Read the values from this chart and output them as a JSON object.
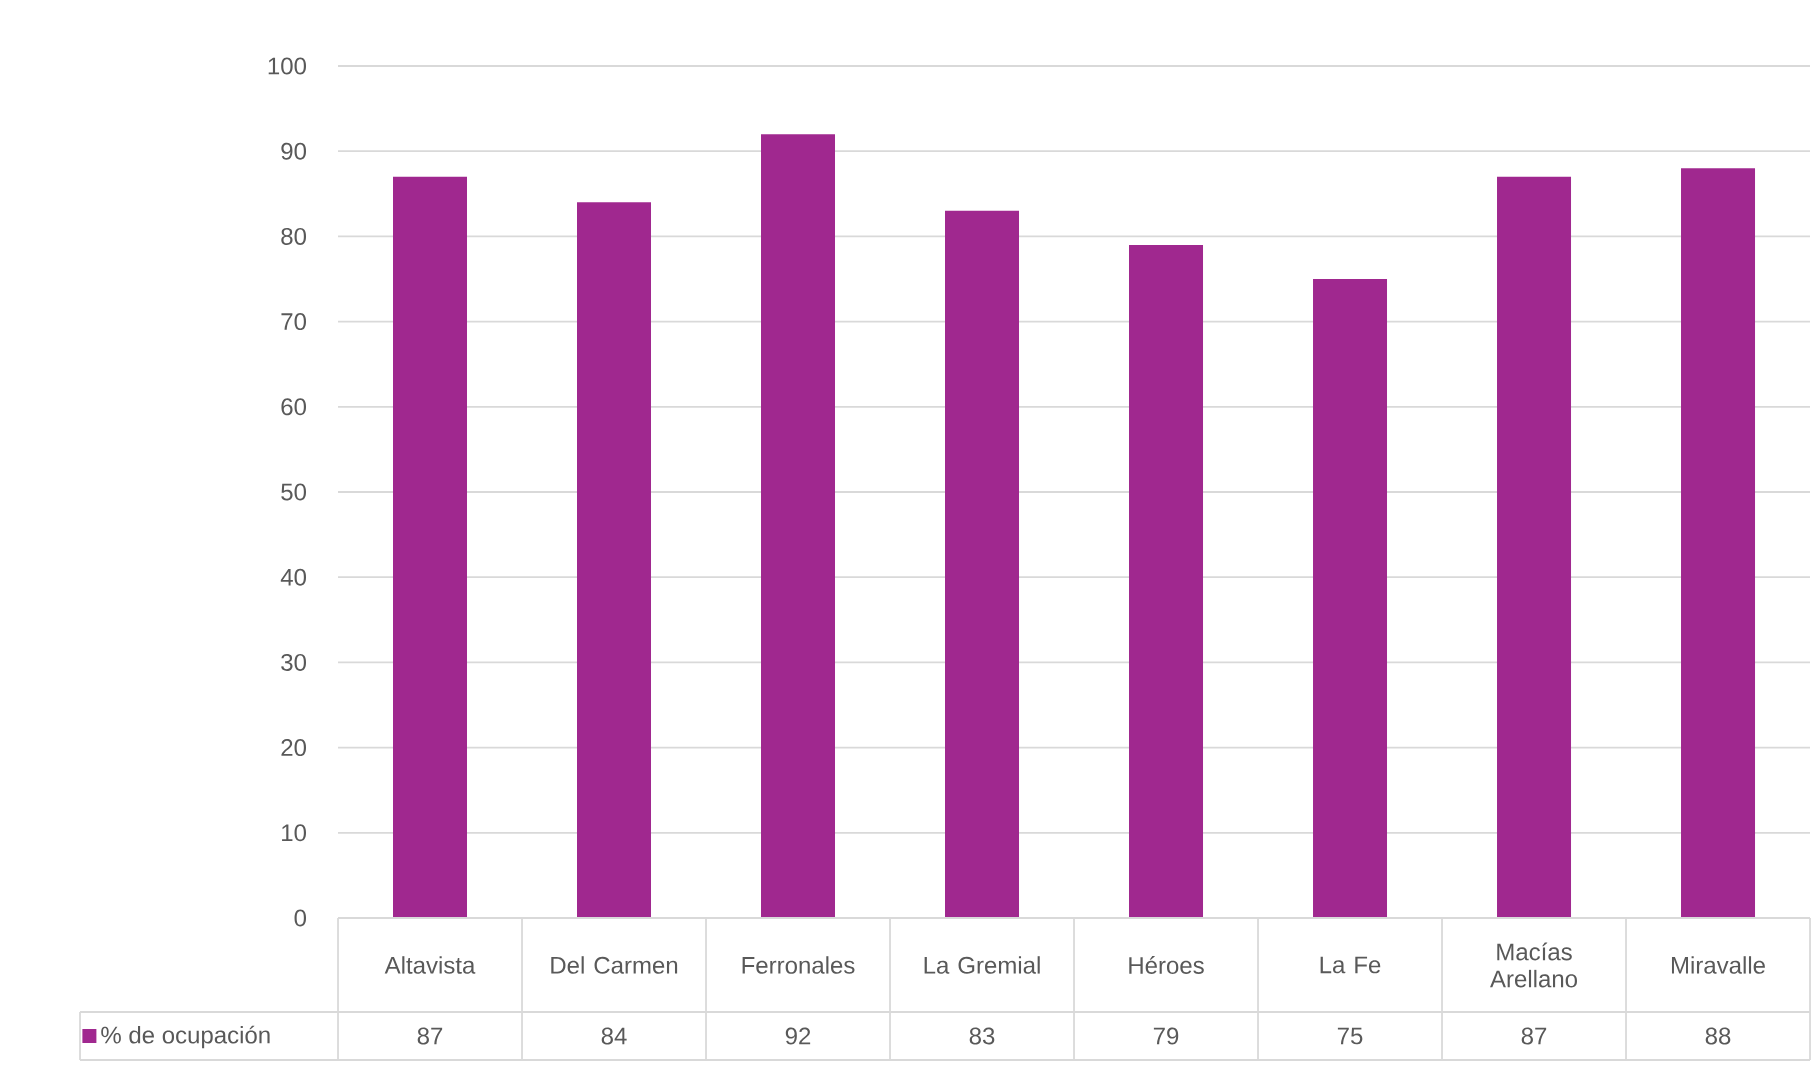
{
  "chart_data": {
    "type": "bar",
    "categories": [
      "Altavista",
      "Del Carmen",
      "Ferronales",
      "La Gremial",
      "Héroes",
      "La Fe",
      "Macías Arellano",
      "Miravalle"
    ],
    "series": [
      {
        "name": "% de ocupación",
        "color": "#a0288f",
        "values": [
          87,
          84,
          92,
          83,
          79,
          75,
          87,
          88
        ]
      }
    ],
    "ylim": [
      0,
      100
    ],
    "yticks": [
      0,
      10,
      20,
      30,
      40,
      50,
      60,
      70,
      80,
      90,
      100
    ],
    "grid": "y",
    "legend": "bottom left",
    "data_labels": true
  }
}
